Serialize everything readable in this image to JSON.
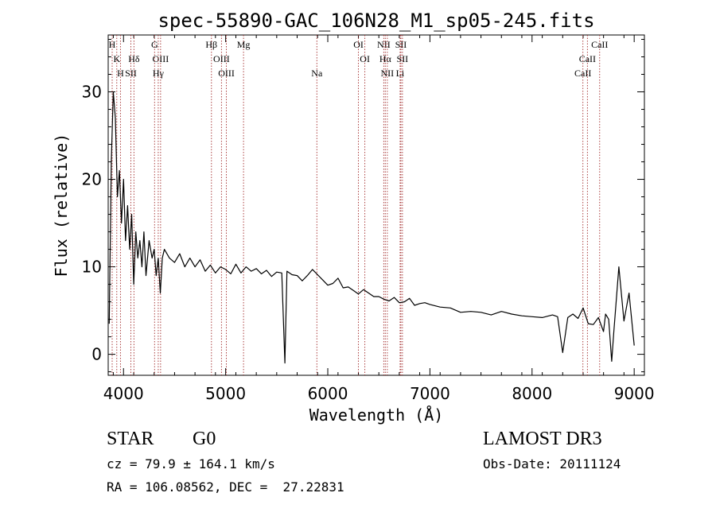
{
  "chart_data": {
    "type": "line",
    "title": "spec-55890-GAC_106N28_M1_sp05-245.fits",
    "xlabel": "Wavelength (Å)",
    "ylabel": "Flux (relative)",
    "xlim": [
      3850,
      9100
    ],
    "ylim": [
      -2.4,
      36.5
    ],
    "xticks": [
      4000,
      5000,
      6000,
      7000,
      8000,
      9000
    ],
    "xtick_labels": [
      "4000",
      "5000",
      "6000",
      "7000",
      "8000",
      "9000"
    ],
    "yticks": [
      0,
      10,
      20,
      30
    ],
    "ytick_labels": [
      "0",
      "10",
      "20",
      "30"
    ],
    "grid": false,
    "legend": "none",
    "series": [
      {
        "name": "spectrum",
        "x": [
          3860,
          3880,
          3900,
          3920,
          3940,
          3960,
          3980,
          4000,
          4020,
          4040,
          4060,
          4080,
          4100,
          4120,
          4140,
          4160,
          4180,
          4200,
          4220,
          4250,
          4280,
          4300,
          4320,
          4340,
          4360,
          4380,
          4400,
          4450,
          4500,
          4550,
          4600,
          4650,
          4700,
          4750,
          4800,
          4850,
          4900,
          4950,
          5000,
          5050,
          5100,
          5150,
          5200,
          5250,
          5300,
          5350,
          5400,
          5450,
          5500,
          5550,
          5580,
          5600,
          5650,
          5700,
          5750,
          5800,
          5850,
          5900,
          5950,
          6000,
          6050,
          6100,
          6150,
          6200,
          6250,
          6300,
          6350,
          6400,
          6450,
          6500,
          6550,
          6600,
          6650,
          6700,
          6750,
          6800,
          6850,
          6900,
          6950,
          7000,
          7100,
          7200,
          7300,
          7400,
          7500,
          7600,
          7700,
          7800,
          7900,
          8000,
          8100,
          8200,
          8250,
          8300,
          8350,
          8400,
          8450,
          8500,
          8550,
          8600,
          8650,
          8700,
          8720,
          8750,
          8780,
          8800,
          8850,
          8900,
          8950,
          9000
        ],
        "y": [
          3.5,
          22,
          30,
          27,
          18,
          21,
          15,
          20,
          13,
          17,
          12,
          16,
          8,
          14,
          11,
          13,
          10,
          14,
          9,
          13,
          11,
          12,
          9,
          11,
          7,
          11,
          12,
          11,
          10.5,
          11.5,
          10,
          11,
          10,
          10.8,
          9.5,
          10.2,
          9.3,
          10,
          9.7,
          9.2,
          10.3,
          9.3,
          10,
          9.5,
          9.8,
          9.2,
          9.6,
          8.9,
          9.4,
          9.3,
          -1,
          9.5,
          9.1,
          9,
          8.4,
          9,
          9.7,
          9.1,
          8.5,
          7.9,
          8.1,
          8.7,
          7.6,
          7.7,
          7.3,
          6.9,
          7.4,
          7,
          6.6,
          6.6,
          6.3,
          6.1,
          6.5,
          5.9,
          6,
          6.4,
          5.6,
          5.8,
          5.9,
          5.7,
          5.4,
          5.3,
          4.8,
          4.9,
          4.8,
          4.5,
          4.9,
          4.6,
          4.4,
          4.3,
          4.2,
          4.5,
          4.3,
          0.2,
          4.2,
          4.6,
          4.1,
          5.3,
          3.5,
          3.4,
          4.2,
          2.6,
          4.6,
          4,
          -0.8,
          2.5,
          10,
          3.8,
          7,
          1
        ]
      }
    ],
    "lines": [
      {
        "label": "H",
        "x": 3889,
        "row": 0
      },
      {
        "label": "K",
        "x": 3934,
        "row": 1
      },
      {
        "label": "H",
        "x": 3970,
        "row": 2
      },
      {
        "label": "Hδ",
        "x": 4102,
        "row": 1
      },
      {
        "label": "SII",
        "x": 4072,
        "row": 2
      },
      {
        "label": "G",
        "x": 4304,
        "row": 0
      },
      {
        "label": "OIII",
        "x": 4363,
        "row": 1
      },
      {
        "label": "Hγ",
        "x": 4340,
        "row": 2
      },
      {
        "label": "Hβ",
        "x": 4861,
        "row": 0
      },
      {
        "label": "OIII",
        "x": 4959,
        "row": 1
      },
      {
        "label": "OIII",
        "x": 5007,
        "row": 2
      },
      {
        "label": "Mg",
        "x": 5175,
        "row": 0
      },
      {
        "label": "Na",
        "x": 5893,
        "row": 2
      },
      {
        "label": "OI",
        "x": 6300,
        "row": 0
      },
      {
        "label": "OI",
        "x": 6363,
        "row": 1
      },
      {
        "label": "NII",
        "x": 6548,
        "row": 0
      },
      {
        "label": "Hα",
        "x": 6563,
        "row": 1
      },
      {
        "label": "NII",
        "x": 6583,
        "row": 2
      },
      {
        "label": "SII",
        "x": 6716,
        "row": 0
      },
      {
        "label": "SII",
        "x": 6731,
        "row": 1
      },
      {
        "label": "Li",
        "x": 6708,
        "row": 2
      },
      {
        "label": "CaII",
        "x": 8498,
        "row": 2
      },
      {
        "label": "CaII",
        "x": 8542,
        "row": 1
      },
      {
        "label": "CaII",
        "x": 8662,
        "row": 0
      }
    ]
  },
  "info": {
    "class": "STAR",
    "subclass": "G0",
    "cz": "cz = 79.9 ± 164.1 km/s",
    "coords": "RA = 106.08562, DEC =  27.22831",
    "survey": "LAMOST DR3",
    "obs_date": "Obs-Date: 20111124"
  }
}
